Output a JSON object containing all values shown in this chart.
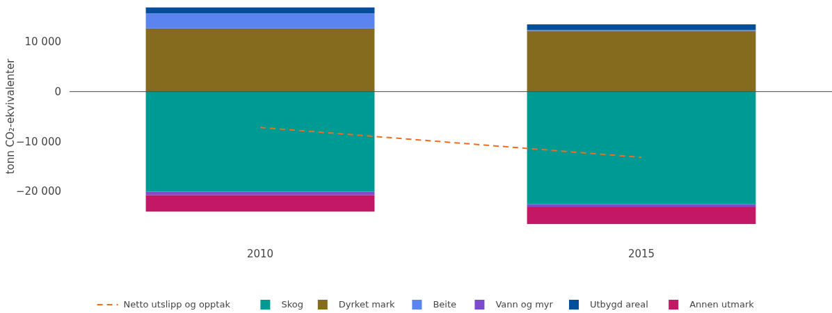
{
  "chart_data": {
    "type": "bar",
    "stacked": true,
    "ylabel": "tonn CO₂-ekvivalenter",
    "categories": [
      "2010",
      "2015"
    ],
    "ylim": [
      -27000,
      17000
    ],
    "yticks": [
      {
        "value": -20000,
        "label": "−20 000"
      },
      {
        "value": -10000,
        "label": "−10 000"
      },
      0,
      {
        "value": 10000,
        "label": "10 000"
      }
    ],
    "ref_lines": [
      {
        "axis": "y",
        "value": 0,
        "color": "#444444"
      }
    ],
    "legend": "bottom",
    "series": [
      {
        "name": "Netto utslipp og opptak",
        "type": "line",
        "line_style": "dashed",
        "color": "#f26c1f",
        "values": [
          -7200,
          -13200
        ]
      },
      {
        "name": "Skog",
        "color": "#009a94",
        "values": [
          -20100,
          -22600
        ]
      },
      {
        "name": "Dyrket mark",
        "color": "#846b1e",
        "values": [
          12700,
          12200
        ]
      },
      {
        "name": "Beite",
        "color": "#5b84ef",
        "values": [
          3000,
          200
        ]
      },
      {
        "name": "Vann og myr",
        "color": "#7b4ccc",
        "values": [
          -700,
          -500
        ]
      },
      {
        "name": "Utbygd areal",
        "color": "#024e9a",
        "values": [
          1200,
          1100
        ]
      },
      {
        "name": "Annen utmark",
        "color": "#c31865",
        "values": [
          -3300,
          -3500
        ]
      }
    ]
  }
}
